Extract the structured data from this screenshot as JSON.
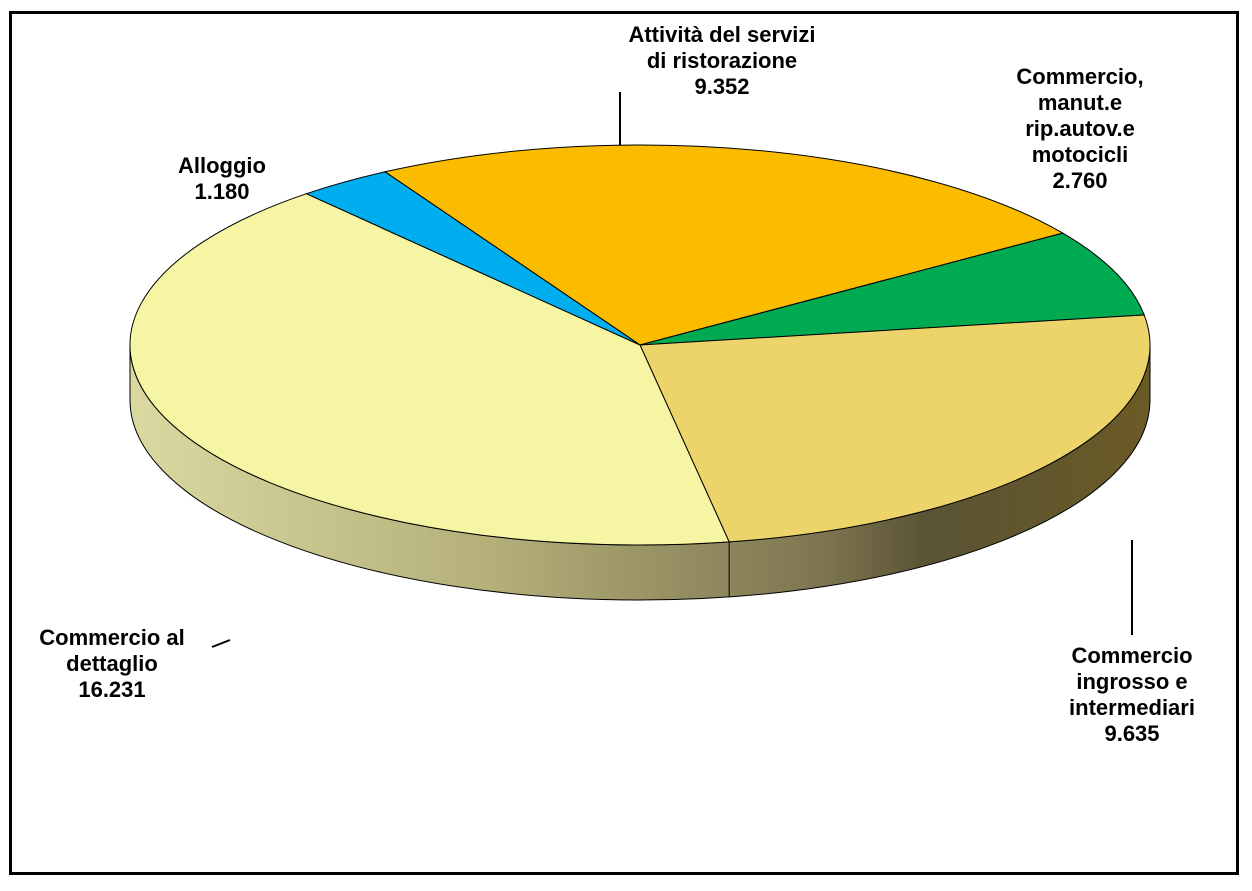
{
  "chart_data": {
    "type": "pie",
    "title": "",
    "series": [
      {
        "label_lines": [
          "Attività del servizi",
          "di ristorazione",
          "9.352"
        ],
        "name": "Attività del servizi di ristorazione",
        "value": 9352,
        "color": "#FBBC00"
      },
      {
        "label_lines": [
          "Commercio,",
          "manut.e",
          "rip.autov.e",
          "motocicli",
          "2.760"
        ],
        "name": "Commercio, manut.e rip.autov.e motocicli",
        "value": 2760,
        "color": "#00AA50"
      },
      {
        "label_lines": [
          "Commercio",
          "ingrosso e",
          "intermediari",
          "9.635"
        ],
        "name": "Commercio ingrosso e intermediari",
        "value": 9635,
        "color": "#EDD46A"
      },
      {
        "label_lines": [
          "Commercio  al",
          "dettaglio",
          "16.231"
        ],
        "name": "Commercio al dettaglio",
        "value": 16231,
        "color": "#F5F5A3"
      },
      {
        "label_lines": [
          "Alloggio",
          "1.180"
        ],
        "name": "Alloggio",
        "value": 1180,
        "color": "#00AEEF"
      }
    ]
  }
}
